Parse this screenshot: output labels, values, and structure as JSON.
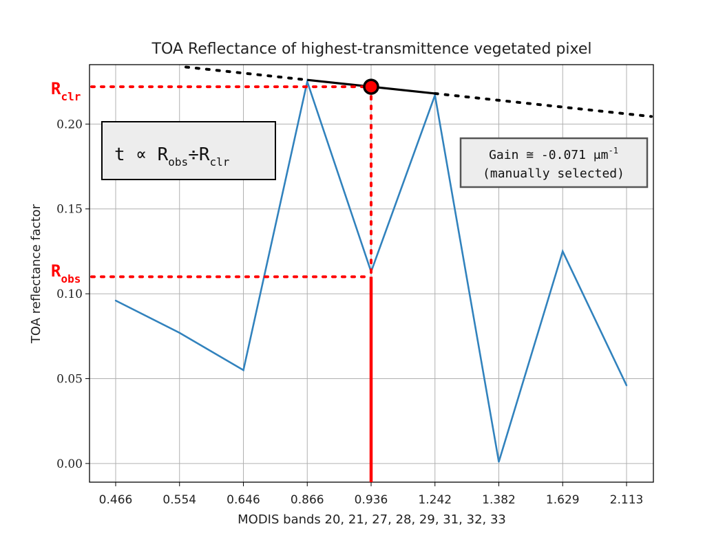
{
  "chart_data": {
    "type": "line",
    "title": "TOA Reflectance of highest-transmittence vegetated pixel",
    "xlabel": "MODIS bands 20, 21, 27, 28, 29, 31, 32, 33",
    "ylabel": "TOA reflectance factor",
    "categories": [
      "0.466",
      "0.554",
      "0.646",
      "0.866",
      "0.936",
      "1.242",
      "1.382",
      "1.629",
      "2.113"
    ],
    "values": [
      0.096,
      0.077,
      0.055,
      0.225,
      0.113,
      0.217,
      0.001,
      0.125,
      0.046
    ],
    "yticks": [
      "0.00",
      "0.05",
      "0.10",
      "0.15",
      "0.20"
    ],
    "ytick_values": [
      0.0,
      0.05,
      0.1,
      0.15,
      0.2
    ],
    "ylim": [
      -0.011,
      0.235
    ],
    "grid": true,
    "line_color": "#3182bd",
    "highlight_color": "#ff0000",
    "clear_line": {
      "start_band": "0.866",
      "end_band": "1.242",
      "start_value": 0.226,
      "end_value": 0.218
    },
    "clear_point": {
      "band": "0.936",
      "value": 0.222
    },
    "r_clr": 0.222,
    "r_obs": 0.11,
    "annotations": {
      "r_clr_main": "R",
      "r_clr_sub": "clr",
      "r_obs_main": "R",
      "r_obs_sub": "obs",
      "formula": {
        "prefix": "t ∝ R",
        "sub1": "obs",
        "mid": "÷R",
        "sub2": "clr"
      },
      "gain": {
        "line1_prefix": "Gain ≅ -0.071 μm",
        "line1_sup": "-1",
        "line2": "(manually selected)"
      }
    }
  }
}
